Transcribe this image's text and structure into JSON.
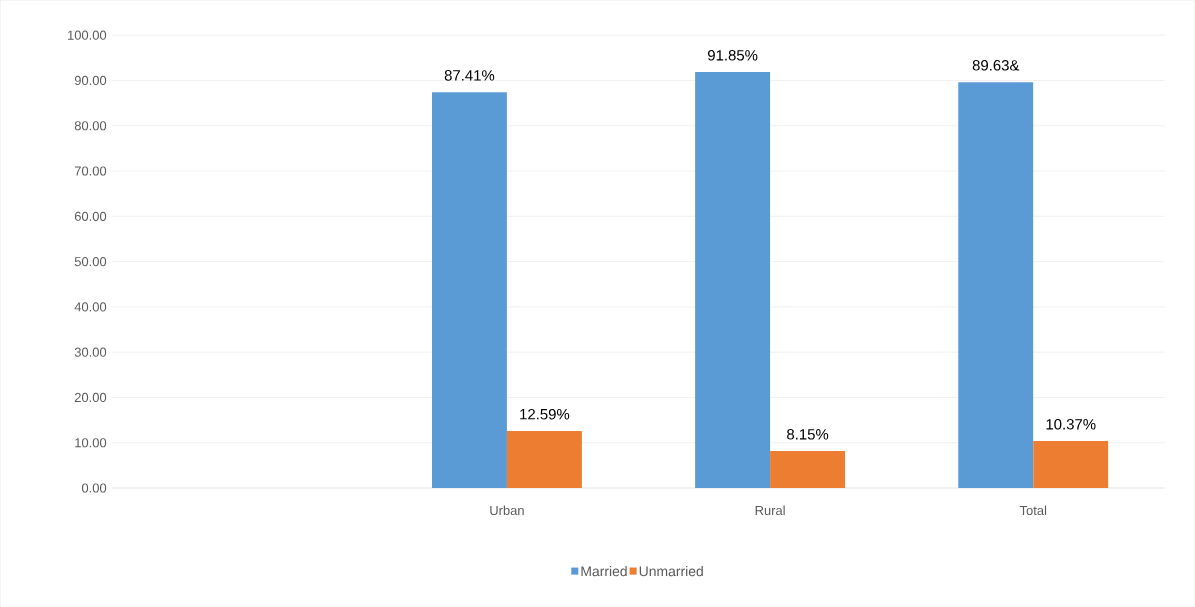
{
  "chart_data": {
    "type": "bar",
    "categories": [
      null,
      "Urban",
      "Rural",
      "Total"
    ],
    "series": [
      {
        "name": "Married",
        "color": "#5b9bd5",
        "values": [
          null,
          87.41,
          91.85,
          89.63
        ],
        "value_labels": [
          null,
          "87.41%",
          "91.85%",
          "89.63&"
        ]
      },
      {
        "name": "Unmarried",
        "color": "#ed7d31",
        "values": [
          null,
          12.59,
          8.15,
          10.37
        ],
        "value_labels": [
          null,
          "12.59%",
          "8.15%",
          "10.37%"
        ]
      }
    ],
    "ylim": [
      0,
      100
    ],
    "yticks": [
      {
        "value": 0,
        "label": "0.00"
      },
      {
        "value": 10,
        "label": "10.00"
      },
      {
        "value": 20,
        "label": "20.00"
      },
      {
        "value": 30,
        "label": "30.00"
      },
      {
        "value": 40,
        "label": "40.00"
      },
      {
        "value": 50,
        "label": "50.00"
      },
      {
        "value": 60,
        "label": "60.00"
      },
      {
        "value": 70,
        "label": "70.00"
      },
      {
        "value": 80,
        "label": "80.00"
      },
      {
        "value": 90,
        "label": "90.00"
      },
      {
        "value": 100,
        "label": "100.00"
      }
    ],
    "grid": "y",
    "legend": "bottom"
  }
}
